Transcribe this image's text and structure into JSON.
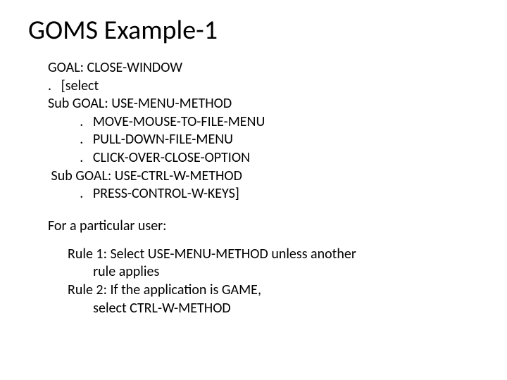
{
  "title": "GOMS Example-1",
  "goms": {
    "lines": [
      "GOAL: CLOSE-WINDOW",
      ".   [select",
      "Sub GOAL: USE-MENU-METHOD",
      "          .   MOVE-MOUSE-TO-FILE-MENU",
      "          .   PULL-DOWN-FILE-MENU",
      "          .   CLICK-OVER-CLOSE-OPTION",
      " Sub GOAL: USE-CTRL-W-METHOD",
      "          .   PRESS-CONTROL-W-KEYS]"
    ]
  },
  "userLabel": "For a particular user:",
  "rules": {
    "lines": [
      "Rule 1: Select USE-MENU-METHOD unless another",
      "        rule applies",
      "Rule 2: If the application is GAME,",
      "        select CTRL-W-METHOD"
    ]
  },
  "style": {
    "background_color": "#ffffff",
    "text_color": "#000000",
    "title_fontsize_pt": 28,
    "body_fontsize_pt": 15,
    "font_family": "Calibri"
  }
}
